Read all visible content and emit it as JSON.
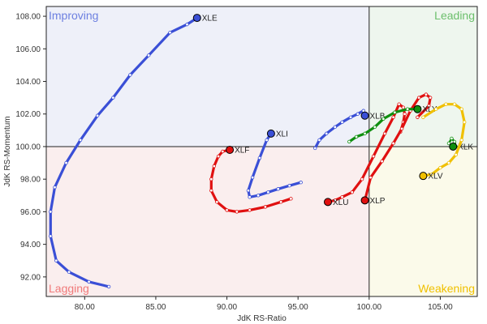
{
  "chart_data": {
    "type": "scatter",
    "title": "",
    "xlabel": "JdK RS-Ratio",
    "ylabel": "JdK RS-Momentum",
    "xlim": [
      77.3,
      107.6
    ],
    "ylim": [
      90.8,
      108.6
    ],
    "center": [
      100,
      100
    ],
    "x_ticks": [
      "80.00",
      "85.00",
      "90.00",
      "95.00",
      "100.00",
      "105.00"
    ],
    "y_ticks": [
      "92.00",
      "94.00",
      "96.00",
      "98.00",
      "100.00",
      "102.00",
      "104.00",
      "106.00",
      "108.00"
    ],
    "grid": false,
    "quadrants": [
      {
        "name": "Improving",
        "label": "Improving",
        "position": "top-left",
        "fill": "#eef0f9",
        "color": "#6c7fe0"
      },
      {
        "name": "Leading",
        "label": "Leading",
        "position": "top-right",
        "fill": "#eef6ee",
        "color": "#6cbf6c"
      },
      {
        "name": "Lagging",
        "label": "Lagging",
        "position": "bottom-left",
        "fill": "#faeeee",
        "color": "#f07a7a"
      },
      {
        "name": "Weakening",
        "label": "Weakening",
        "position": "bottom-right",
        "fill": "#fbfaea",
        "color": "#f0c000"
      }
    ],
    "series": [
      {
        "name": "XLE",
        "color": "#3a4fd6",
        "x": [
          81.7,
          80.3,
          78.9,
          78.0,
          77.6,
          77.6,
          77.9,
          78.7,
          79.7,
          80.9,
          82.0,
          83.2,
          84.5,
          86.0,
          87.2,
          87.9
        ],
        "y": [
          91.4,
          91.7,
          92.3,
          93.0,
          94.5,
          96.0,
          97.5,
          99.0,
          100.4,
          101.9,
          103.0,
          104.4,
          105.6,
          107.0,
          107.5,
          107.9
        ]
      },
      {
        "name": "XLI",
        "color": "#3a4fd6",
        "x": [
          95.2,
          94.4,
          93.6,
          92.9,
          92.2,
          91.6,
          91.5,
          91.8,
          92.3,
          92.8,
          93.1
        ],
        "y": [
          97.8,
          97.6,
          97.4,
          97.2,
          97.0,
          96.9,
          97.3,
          98.1,
          99.3,
          100.4,
          100.8
        ]
      },
      {
        "name": "XLB",
        "color": "#3a4fd6",
        "x": [
          96.2,
          96.5,
          97.0,
          97.6,
          98.1,
          98.7,
          99.2,
          99.6,
          99.7
        ],
        "y": [
          99.9,
          100.4,
          100.8,
          101.2,
          101.5,
          101.8,
          102.0,
          102.2,
          101.9
        ]
      },
      {
        "name": "XLF",
        "color": "#e01010",
        "x": [
          94.5,
          93.8,
          92.7,
          91.6,
          90.7,
          90.0,
          89.3,
          88.9,
          88.9,
          89.1,
          89.4,
          89.7,
          90.2
        ],
        "y": [
          96.8,
          96.6,
          96.3,
          96.1,
          96.0,
          96.1,
          96.6,
          97.3,
          98.0,
          98.8,
          99.4,
          99.7,
          99.8
        ]
      },
      {
        "name": "XLU",
        "color": "#e01010",
        "x": [
          102.2,
          102.4,
          102.5,
          102.4,
          102.1,
          101.7,
          101.1,
          100.3,
          99.5,
          98.8,
          98.1,
          97.6,
          97.1
        ],
        "y": [
          100.9,
          101.5,
          102.0,
          102.4,
          102.6,
          101.8,
          100.8,
          99.4,
          98.0,
          97.2,
          96.9,
          96.7,
          96.6
        ]
      },
      {
        "name": "XLP",
        "color": "#e01010",
        "x": [
          103.4,
          104.2,
          104.3,
          104.0,
          103.5,
          102.9,
          102.3,
          101.7,
          100.9,
          100.1,
          99.7
        ],
        "y": [
          101.8,
          102.5,
          103.0,
          103.2,
          103.0,
          102.2,
          101.1,
          100.2,
          99.1,
          98.1,
          96.7
        ]
      },
      {
        "name": "XLY",
        "color": "#0f8f0f",
        "x": [
          98.6,
          99.1,
          99.7,
          100.4,
          101.0,
          101.8,
          102.7,
          103.4
        ],
        "y": [
          100.3,
          100.6,
          100.8,
          101.2,
          101.7,
          102.1,
          102.3,
          102.3
        ]
      },
      {
        "name": "XLK",
        "color": "#0f8f0f",
        "x": [
          105.6,
          105.8,
          106.0,
          106.1,
          105.9
        ],
        "y": [
          100.2,
          100.5,
          100.3,
          100.0,
          100.0
        ]
      },
      {
        "name": "XLV",
        "color": "#f0c000",
        "x": [
          103.8,
          104.7,
          105.4,
          106.0,
          106.5,
          106.7,
          106.5,
          106.1,
          105.6,
          105.0,
          104.4,
          103.8
        ],
        "y": [
          101.8,
          102.3,
          102.6,
          102.6,
          102.3,
          101.5,
          100.4,
          99.5,
          99.0,
          98.7,
          98.3,
          98.2
        ]
      }
    ]
  }
}
